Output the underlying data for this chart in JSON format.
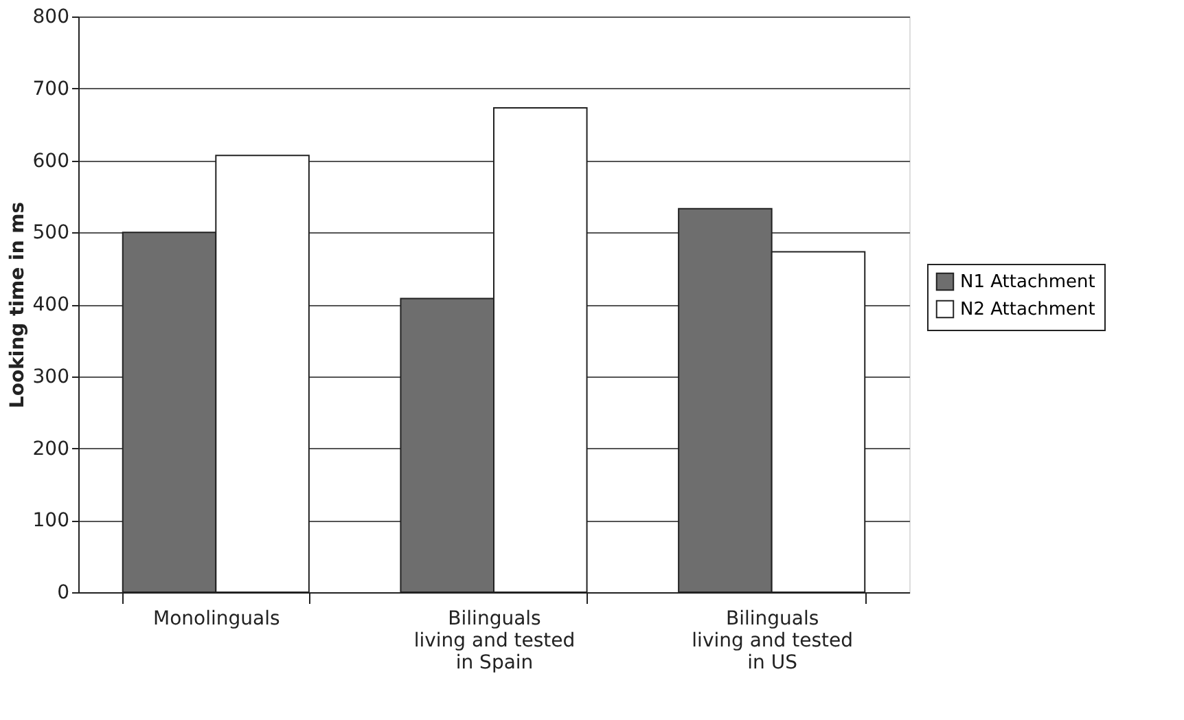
{
  "chart_data": {
    "type": "bar",
    "ylabel": "Looking time in ms",
    "categories": [
      "Monolinguals",
      "Bilinguals\nliving and tested\nin Spain",
      "Bilinguals\nliving and tested\nin US"
    ],
    "series": [
      {
        "name": "N1 Attachment",
        "color": "#6e6e6e",
        "values": [
          500,
          408,
          533
        ]
      },
      {
        "name": "N2 Attachment",
        "color": "#ffffff",
        "values": [
          607,
          673,
          473
        ]
      }
    ],
    "ylim": [
      0,
      800
    ],
    "yticks": [
      0,
      100,
      200,
      300,
      400,
      500,
      600,
      700,
      800
    ],
    "grid": "y",
    "legend": "right"
  }
}
